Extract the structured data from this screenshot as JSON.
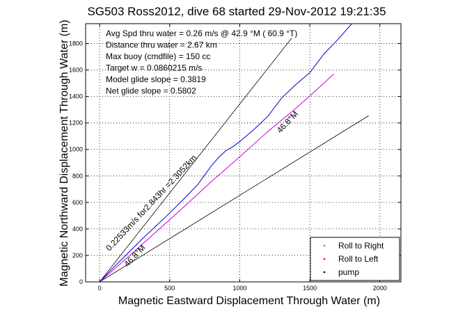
{
  "chart_data": {
    "type": "line",
    "title": "SG503 Ross2012, dive 68 started 29-Nov-2012 19:21:35",
    "xlabel": "Magnetic Eastward Displacement Through Water (m)",
    "ylabel": "Magnetic Northward Displacement Through Water (m)",
    "xlim": [
      -100,
      2150
    ],
    "ylim": [
      0,
      1950
    ],
    "xticks": [
      0,
      500,
      1000,
      1500,
      2000
    ],
    "yticks": [
      0,
      200,
      400,
      600,
      800,
      1000,
      1200,
      1400,
      1600,
      1800
    ],
    "grid": true,
    "legend_position": "bottom-right",
    "info_lines": [
      "Avg Spd thru water =  0.26 m/s @  42.9   °M ( 60.9 °T)",
      "Distance thru water =  2.67 km",
      "Max buoy (cmdfile) = 150 cc",
      "Target w = 0.0860215 m/s",
      "Model glide slope = 0.3819",
      "Net glide slope = 0.5802"
    ],
    "annotations": [
      {
        "text": "0.22533m/s for2.843hr =2.3052km",
        "x": 70,
        "y": 230,
        "angle_deg": 46.8
      },
      {
        "text": "46.8°M",
        "x": 1290,
        "y": 1120,
        "angle_deg": 46.8
      },
      {
        "text": "46.8°M",
        "x": 200,
        "y": 110,
        "angle_deg": 46.8
      }
    ],
    "reference_lines": [
      {
        "name": "upper",
        "x": [
          0,
          1370
        ],
        "y": [
          0,
          1840
        ]
      },
      {
        "name": "lower",
        "x": [
          0,
          1920
        ],
        "y": [
          0,
          1255
        ]
      }
    ],
    "series": [
      {
        "name": "",
        "color": "#0000cc",
        "x": [
          0,
          100,
          200,
          300,
          400,
          500,
          600,
          700,
          800,
          850,
          900,
          950,
          1000,
          1100,
          1200,
          1300,
          1400,
          1500,
          1600,
          1700,
          1800
        ],
        "y": [
          0,
          110,
          215,
          320,
          420,
          520,
          625,
          735,
          880,
          940,
          990,
          1020,
          1060,
          1150,
          1250,
          1390,
          1490,
          1580,
          1720,
          1830,
          1950
        ]
      },
      {
        "name": "",
        "color": "#cc00cc",
        "x": [
          0,
          200,
          400,
          600,
          800,
          1000,
          1200,
          1400,
          1600,
          1670
        ],
        "y": [
          0,
          185,
          375,
          565,
          760,
          945,
          1135,
          1310,
          1500,
          1570
        ]
      }
    ],
    "legend": [
      {
        "label": "Roll to Right",
        "color": "#00bb00",
        "marker": "dot"
      },
      {
        "label": "Roll to Left",
        "color": "#ff0000",
        "marker": "dot"
      },
      {
        "label": "pump",
        "color": "#000000",
        "marker": "dot"
      }
    ]
  }
}
